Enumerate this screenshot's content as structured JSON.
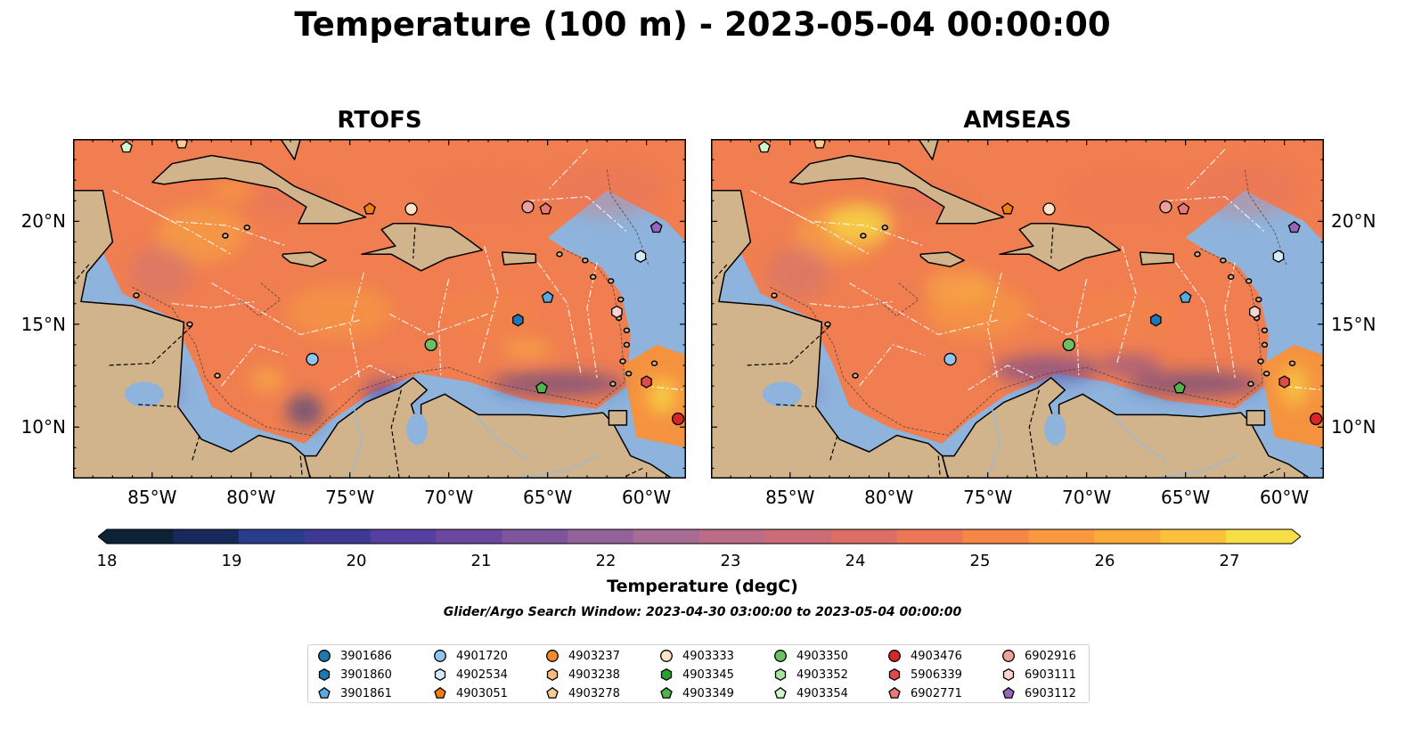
{
  "title": "Temperature (100 m) - 2023-05-04 00:00:00",
  "panels": [
    {
      "title": "RTOFS",
      "model": "rtofs"
    },
    {
      "title": "AMSEAS",
      "model": "amseas"
    }
  ],
  "colorbar": {
    "label": "Temperature (degC)",
    "min": 18,
    "max": 27,
    "step": 0.5,
    "ticks": [
      "18",
      "19",
      "20",
      "21",
      "22",
      "23",
      "24",
      "25",
      "26",
      "27"
    ],
    "colors": [
      "#0c2237",
      "#16295a",
      "#2a3d8c",
      "#3f3996",
      "#553fa0",
      "#6b489f",
      "#7e559c",
      "#93629a",
      "#a86b93",
      "#bb6c86",
      "#cc6c77",
      "#dd6e66",
      "#ec7655",
      "#f58646",
      "#f9983f",
      "#fbab3a",
      "#fcc13c",
      "#f6df45"
    ]
  },
  "search_window_text": "Glider/Argo Search Window: 2023-04-30 03:00:00 to 2023-05-04 00:00:00",
  "chart_data": {
    "type": "map",
    "variable": "Temperature (100 m)",
    "time": "2023-05-04 00:00:00",
    "lon_range": [
      -89,
      -58
    ],
    "lat_range": [
      7.5,
      24
    ],
    "x_ticks": [
      {
        "label": "85°W",
        "lon": -85
      },
      {
        "label": "80°W",
        "lon": -80
      },
      {
        "label": "75°W",
        "lon": -75
      },
      {
        "label": "70°W",
        "lon": -70
      },
      {
        "label": "65°W",
        "lon": -65
      },
      {
        "label": "60°W",
        "lon": -60
      }
    ],
    "y_ticks": [
      {
        "label": "20°N",
        "lat": 20
      },
      {
        "label": "15°N",
        "lat": 15
      },
      {
        "label": "10°N",
        "lat": 10
      }
    ],
    "floats": [
      {
        "id": "3901686",
        "marker": "circle",
        "color": "#1f77b4",
        "lon": null,
        "lat": null
      },
      {
        "id": "3901860",
        "marker": "hexagon",
        "color": "#1f77b4",
        "lon": -66.5,
        "lat": 15.2
      },
      {
        "id": "3901861",
        "marker": "pentagon",
        "color": "#5aa9e0",
        "lon": -65.0,
        "lat": 16.3
      },
      {
        "id": "4901720",
        "marker": "circle",
        "color": "#8fc4ee",
        "lon": -76.9,
        "lat": 13.3
      },
      {
        "id": "4902534",
        "marker": "hexagon",
        "color": "#d5e9fb",
        "lon": -60.3,
        "lat": 18.3
      },
      {
        "id": "4903051",
        "marker": "pentagon",
        "color": "#f07e12",
        "lon": -74.0,
        "lat": 20.6
      },
      {
        "id": "4903237",
        "marker": "circle",
        "color": "#f5892b",
        "lon": null,
        "lat": null
      },
      {
        "id": "4903238",
        "marker": "hexagon",
        "color": "#fdb97a",
        "lon": null,
        "lat": null
      },
      {
        "id": "4903278",
        "marker": "pentagon",
        "color": "#fdcc94",
        "lon": -83.5,
        "lat": 23.8
      },
      {
        "id": "4903333",
        "marker": "circle",
        "color": "#fde3c8",
        "lon": -71.9,
        "lat": 20.6
      },
      {
        "id": "4903345",
        "marker": "hexagon",
        "color": "#2ca02c",
        "lon": null,
        "lat": null
      },
      {
        "id": "4903349",
        "marker": "pentagon",
        "color": "#52b447",
        "lon": -65.3,
        "lat": 11.9
      },
      {
        "id": "4903350",
        "marker": "circle",
        "color": "#6cc062",
        "lon": -70.9,
        "lat": 14.0
      },
      {
        "id": "4903352",
        "marker": "hexagon",
        "color": "#a8e3a0",
        "lon": null,
        "lat": null
      },
      {
        "id": "4903354",
        "marker": "pentagon",
        "color": "#d3f5cd",
        "lon": -86.3,
        "lat": 23.6
      },
      {
        "id": "4903476",
        "marker": "circle",
        "color": "#d62728",
        "lon": -58.4,
        "lat": 10.4
      },
      {
        "id": "5906339",
        "marker": "hexagon",
        "color": "#e04b48",
        "lon": -60.0,
        "lat": 12.2
      },
      {
        "id": "6902771",
        "marker": "pentagon",
        "color": "#ed7676",
        "lon": -65.1,
        "lat": 20.6
      },
      {
        "id": "6902916",
        "marker": "circle",
        "color": "#f0a09a",
        "lon": -66.0,
        "lat": 20.7
      },
      {
        "id": "6903111",
        "marker": "hexagon",
        "color": "#fbd3d0",
        "lon": -61.5,
        "lat": 15.6
      },
      {
        "id": "6903112",
        "marker": "pentagon",
        "color": "#9467bd",
        "lon": -59.5,
        "lat": 19.7
      }
    ]
  }
}
